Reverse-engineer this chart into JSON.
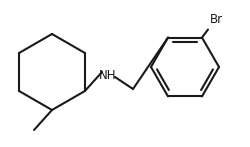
{
  "background_color": "#ffffff",
  "line_color": "#1a1a1a",
  "line_width": 1.5,
  "text_color": "#1a1a1a",
  "label_fontsize": 8.5,
  "br_label": "Br",
  "nh_label": "NH",
  "figsize": [
    2.5,
    1.47
  ],
  "dpi": 100
}
